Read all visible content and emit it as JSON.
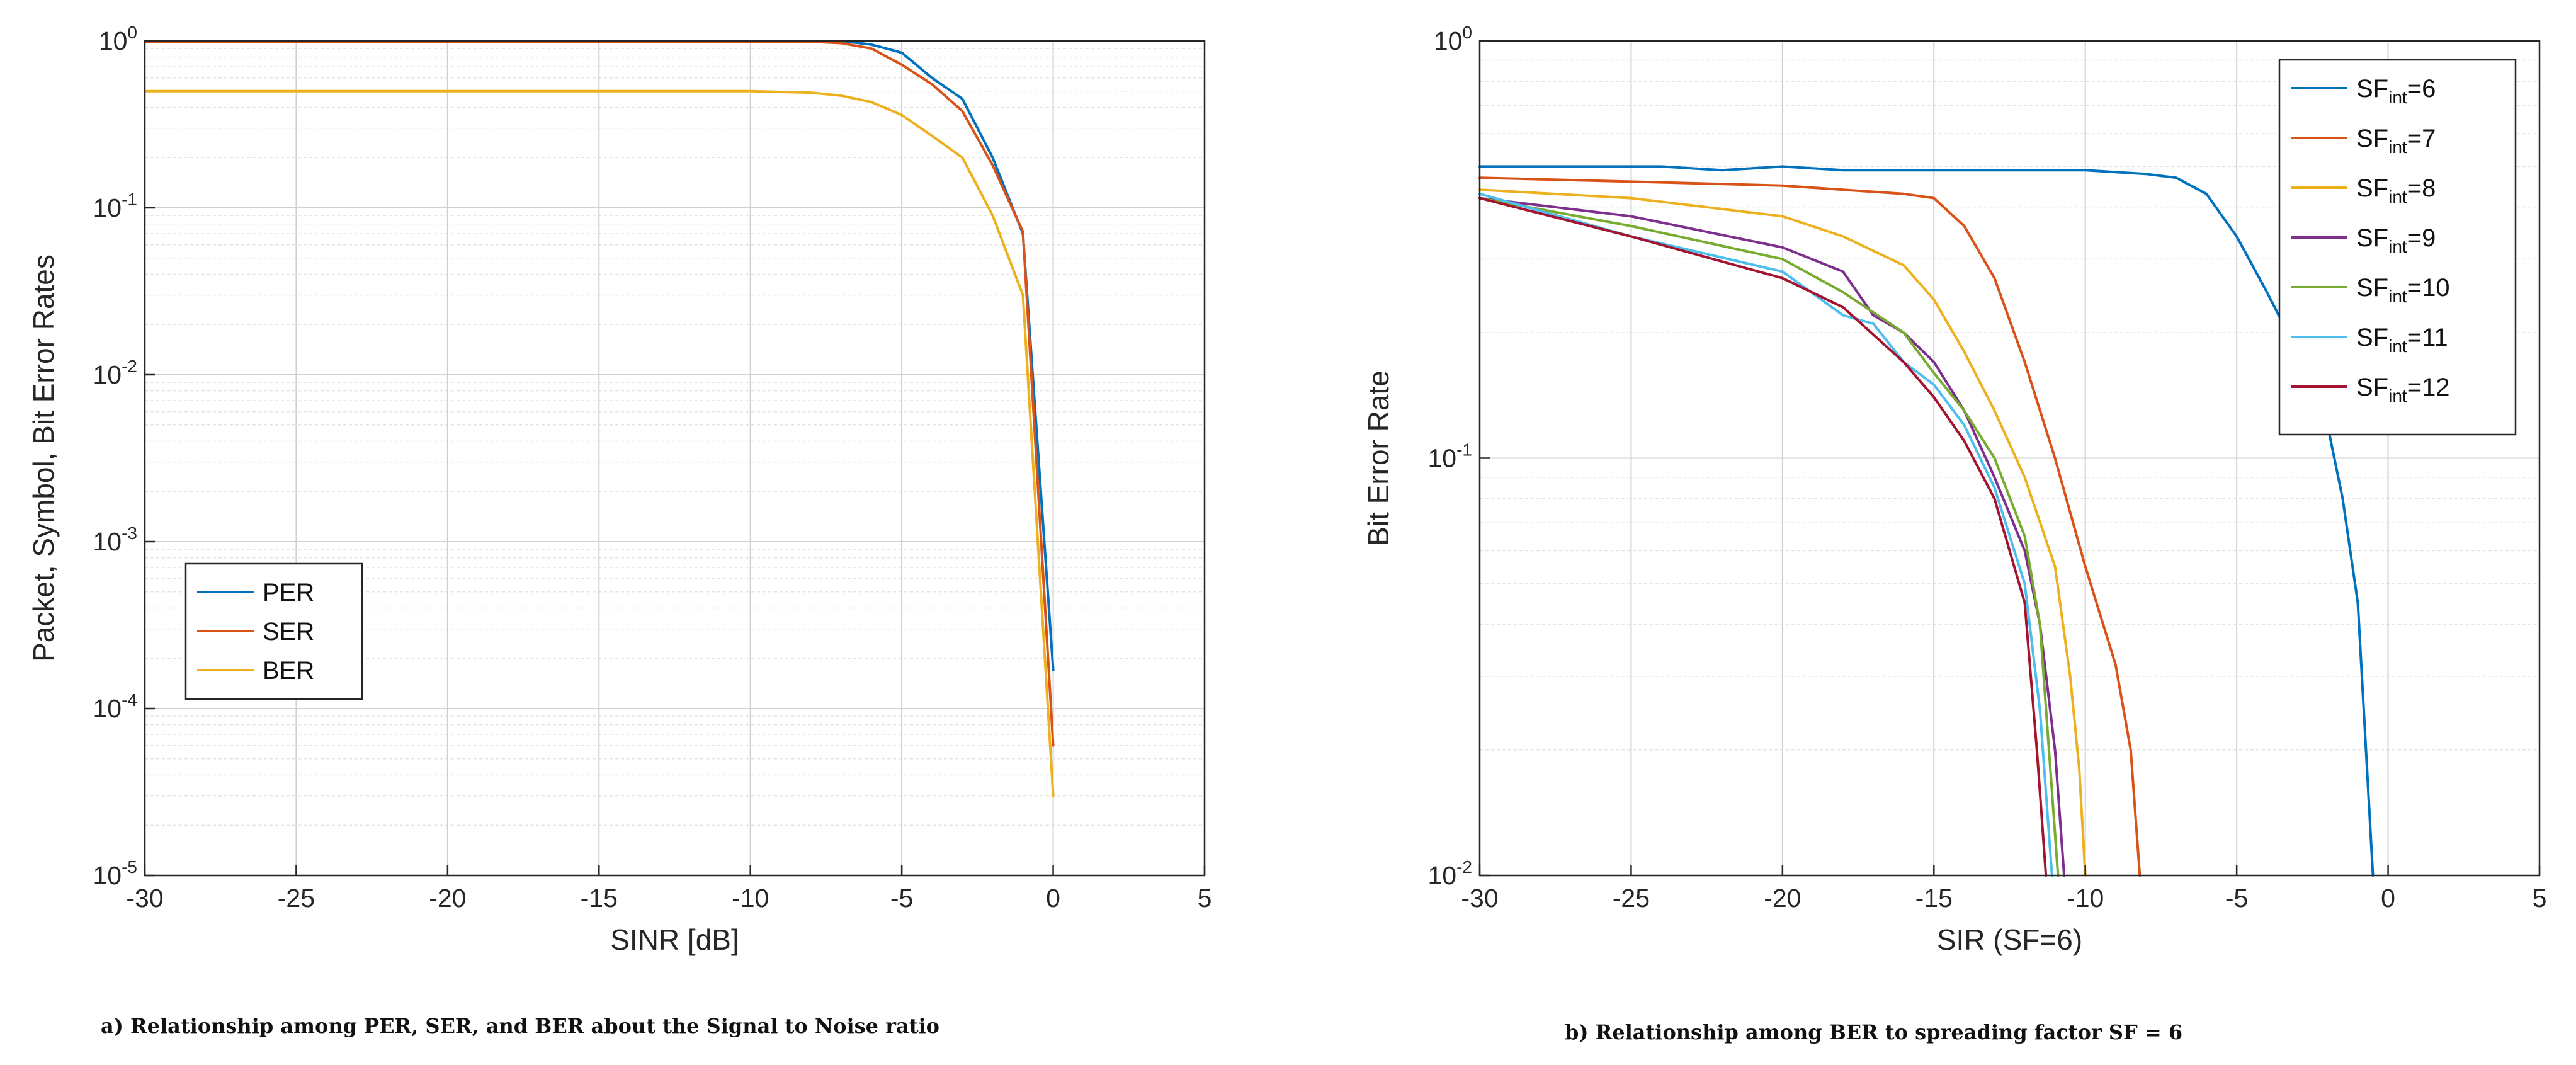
{
  "chart_data": [
    {
      "id": "a",
      "type": "line",
      "yscale": "log",
      "title": "",
      "caption": "a) Relationship among PER, SER, and BER about the Signal to Noise ratio",
      "xlabel": "SINR [dB]",
      "ylabel": "Packet, Symbol, Bit Error Rates",
      "xlim": [
        -30,
        5
      ],
      "ylim": [
        1e-05,
        1
      ],
      "xticks": [
        -30,
        -25,
        -20,
        -15,
        -10,
        -5,
        0,
        5
      ],
      "xtick_labels": [
        "-30",
        "-25",
        "-20",
        "-15",
        "-10",
        "-5",
        "0",
        "5"
      ],
      "yticks": [
        1e-05,
        0.0001,
        0.001,
        0.01,
        0.1,
        1
      ],
      "ytick_labels": [
        {
          "base": "10",
          "exp": "-5"
        },
        {
          "base": "10",
          "exp": "-4"
        },
        {
          "base": "10",
          "exp": "-3"
        },
        {
          "base": "10",
          "exp": "-2"
        },
        {
          "base": "10",
          "exp": "-1"
        },
        {
          "base": "10",
          "exp": "0"
        }
      ],
      "grid": true,
      "legend_position": "lower-left",
      "series": [
        {
          "name": "PER",
          "color": "#0072BD",
          "x": [
            -30,
            -8,
            -7,
            -6,
            -5,
            -4,
            -3,
            -2,
            -1,
            0
          ],
          "y": [
            1,
            1,
            1,
            0.95,
            0.85,
            0.6,
            0.45,
            0.2,
            0.07,
            0.00017
          ]
        },
        {
          "name": "SER",
          "color": "#D95319",
          "x": [
            -30,
            -8,
            -7,
            -6,
            -5,
            -4,
            -3,
            -2,
            -1,
            0
          ],
          "y": [
            0.99,
            0.99,
            0.97,
            0.9,
            0.72,
            0.55,
            0.38,
            0.18,
            0.072,
            6e-05
          ]
        },
        {
          "name": "BER",
          "color": "#EDB120",
          "x": [
            -30,
            -25,
            -20,
            -15,
            -10,
            -8,
            -7,
            -6,
            -5,
            -4,
            -3,
            -2,
            -1,
            0
          ],
          "y": [
            0.5,
            0.5,
            0.5,
            0.5,
            0.5,
            0.49,
            0.47,
            0.43,
            0.36,
            0.27,
            0.2,
            0.09,
            0.03,
            3e-05
          ]
        }
      ]
    },
    {
      "id": "b",
      "type": "line",
      "yscale": "log",
      "title": "",
      "caption": "b) Relationship among BER to spreading factor SF = 6",
      "xlabel": "SIR (SF=6)",
      "ylabel": "Bit Error Rate",
      "xlim": [
        -30,
        5
      ],
      "ylim": [
        0.01,
        1
      ],
      "xticks": [
        -30,
        -25,
        -20,
        -15,
        -10,
        -5,
        0,
        5
      ],
      "xtick_labels": [
        "-30",
        "-25",
        "-20",
        "-15",
        "-10",
        "-5",
        "0",
        "5"
      ],
      "yticks": [
        0.01,
        0.1,
        1
      ],
      "ytick_labels": [
        {
          "base": "10",
          "exp": "-2"
        },
        {
          "base": "10",
          "exp": "-1"
        },
        {
          "base": "10",
          "exp": "0"
        }
      ],
      "grid": true,
      "legend_position": "top-right",
      "series": [
        {
          "name": "SF",
          "sub": "int",
          "suffix": "=6",
          "color": "#0072BD",
          "x": [
            -30,
            -28,
            -26,
            -24,
            -22,
            -20,
            -18,
            -16,
            -14,
            -12,
            -10,
            -8,
            -7,
            -6,
            -5,
            -4,
            -3,
            -2,
            -1.5,
            -1,
            -0.5
          ],
          "y": [
            0.5,
            0.5,
            0.5,
            0.5,
            0.49,
            0.5,
            0.49,
            0.49,
            0.49,
            0.49,
            0.49,
            0.48,
            0.47,
            0.43,
            0.34,
            0.25,
            0.18,
            0.12,
            0.08,
            0.045,
            0.01
          ]
        },
        {
          "name": "SF",
          "sub": "int",
          "suffix": "=7",
          "color": "#D95319",
          "x": [
            -30,
            -25,
            -20,
            -16,
            -15,
            -14,
            -13,
            -12,
            -11,
            -10,
            -9,
            -8.5,
            -8.2
          ],
          "y": [
            0.47,
            0.46,
            0.45,
            0.43,
            0.42,
            0.36,
            0.27,
            0.17,
            0.1,
            0.055,
            0.032,
            0.02,
            0.01
          ]
        },
        {
          "name": "SF",
          "sub": "int",
          "suffix": "=8",
          "color": "#EDB120",
          "x": [
            -30,
            -25,
            -20,
            -18,
            -16,
            -15,
            -14,
            -13,
            -12,
            -11,
            -10.5,
            -10.2,
            -10
          ],
          "y": [
            0.44,
            0.42,
            0.38,
            0.34,
            0.29,
            0.24,
            0.18,
            0.13,
            0.09,
            0.055,
            0.03,
            0.018,
            0.01
          ]
        },
        {
          "name": "SF",
          "sub": "int",
          "suffix": "=9",
          "color": "#7E2F8E",
          "x": [
            -30,
            -25,
            -20,
            -18,
            -17,
            -16,
            -15,
            -14,
            -13,
            -12,
            -11.5,
            -11,
            -10.7
          ],
          "y": [
            0.42,
            0.38,
            0.32,
            0.28,
            0.22,
            0.2,
            0.17,
            0.13,
            0.09,
            0.06,
            0.04,
            0.02,
            0.01
          ]
        },
        {
          "name": "SF",
          "sub": "int",
          "suffix": "=10",
          "color": "#77AC30",
          "x": [
            -30,
            -25,
            -20,
            -18,
            -16,
            -15,
            -14,
            -13,
            -12,
            -11.5,
            -11.2,
            -10.9
          ],
          "y": [
            0.42,
            0.36,
            0.3,
            0.25,
            0.2,
            0.16,
            0.13,
            0.1,
            0.065,
            0.04,
            0.02,
            0.01
          ]
        },
        {
          "name": "SF",
          "sub": "int",
          "suffix": "=11",
          "color": "#4DBEEE",
          "x": [
            -30,
            -25,
            -20,
            -18,
            -17,
            -16,
            -15,
            -14,
            -13,
            -12,
            -11.5,
            -11.1
          ],
          "y": [
            0.43,
            0.34,
            0.28,
            0.22,
            0.21,
            0.17,
            0.15,
            0.12,
            0.085,
            0.05,
            0.025,
            0.01
          ]
        },
        {
          "name": "SF",
          "sub": "int",
          "suffix": "=12",
          "color": "#A2142F",
          "x": [
            -30,
            -25,
            -20,
            -18,
            -16,
            -15,
            -14,
            -13,
            -12,
            -11.6,
            -11.3
          ],
          "y": [
            0.42,
            0.34,
            0.27,
            0.23,
            0.17,
            0.14,
            0.11,
            0.08,
            0.045,
            0.02,
            0.01
          ]
        }
      ]
    }
  ]
}
